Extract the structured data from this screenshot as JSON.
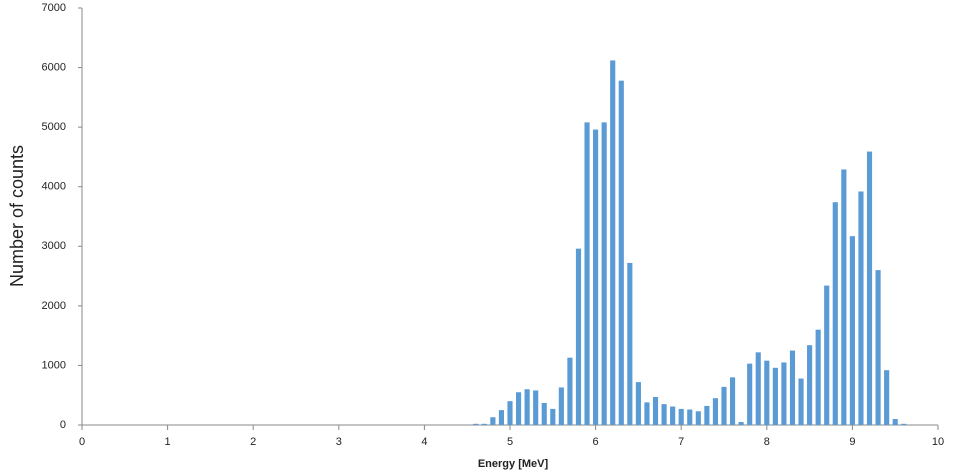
{
  "chart_data": {
    "type": "bar",
    "x_label": "Energy [MeV]",
    "y_label": "Number of counts",
    "color": "#5b9bd5",
    "grid": false,
    "x": [
      4.6,
      4.7,
      4.8,
      4.9,
      5.0,
      5.1,
      5.2,
      5.3,
      5.4,
      5.5,
      5.6,
      5.7,
      5.8,
      5.9,
      6.0,
      6.1,
      6.2,
      6.3,
      6.4,
      6.5,
      6.6,
      6.7,
      6.8,
      6.9,
      7.0,
      7.1,
      7.2,
      7.3,
      7.4,
      7.5,
      7.6,
      7.7,
      7.8,
      7.9,
      8.0,
      8.1,
      8.2,
      8.3,
      8.4,
      8.5,
      8.6,
      8.7,
      8.8,
      8.9,
      9.0,
      9.1,
      9.2,
      9.3,
      9.4,
      9.5,
      9.6
    ],
    "values": [
      20,
      20,
      130,
      250,
      400,
      550,
      600,
      580,
      370,
      270,
      630,
      1130,
      2960,
      5080,
      4960,
      5080,
      6120,
      5780,
      2720,
      720,
      380,
      470,
      350,
      310,
      270,
      260,
      230,
      320,
      450,
      640,
      800,
      50,
      1030,
      1220,
      1080,
      960,
      1050,
      1250,
      780,
      1340,
      1600,
      2340,
      3740,
      4290,
      3170,
      3920,
      4590,
      2600,
      920,
      100,
      20
    ],
    "xlim": [
      0,
      10
    ],
    "xticks": [
      0,
      1,
      2,
      3,
      4,
      5,
      6,
      7,
      8,
      9,
      10
    ],
    "ylim": [
      0,
      7000
    ],
    "yticks": [
      0,
      1000,
      2000,
      3000,
      4000,
      5000,
      6000,
      7000
    ]
  }
}
